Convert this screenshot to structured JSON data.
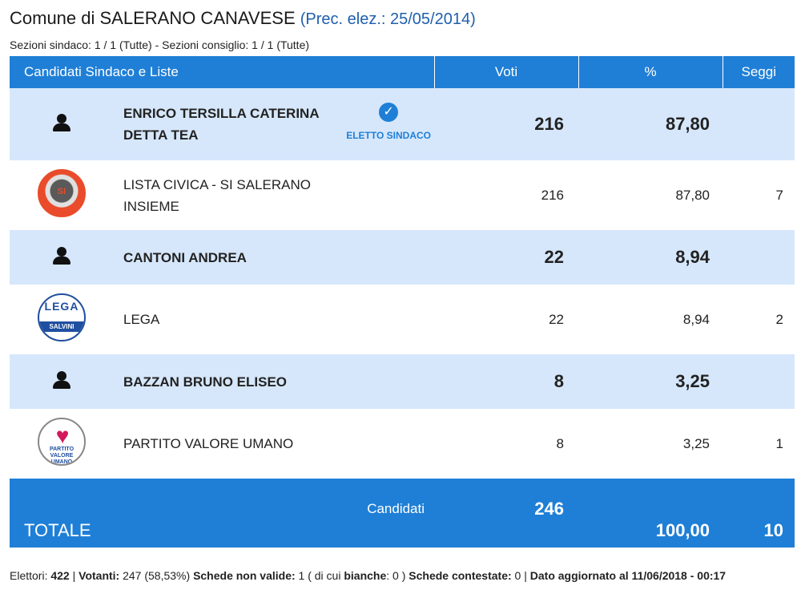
{
  "header": {
    "title": "Comune di SALERANO CANAVESE",
    "prec": "(Prec. elez.: 25/05/2014)",
    "subtitle": "Sezioni sindaco: 1 / 1 (Tutte) - Sezioni consiglio: 1 / 1 (Tutte)"
  },
  "table": {
    "columns": [
      "Candidati Sindaco e Liste",
      "Voti",
      "%",
      "Seggi"
    ],
    "rows": [
      {
        "kind": "candidate",
        "icon": "person-icon",
        "name_line1": "ENRICO TERSILLA CATERINA",
        "name_line2": "DETTA TEA",
        "badge": "ELETTO SINDACO",
        "voti": "216",
        "pct": "87,80",
        "seggi": ""
      },
      {
        "kind": "list",
        "icon": "lista-civica-logo",
        "logo_text": "SI",
        "name_line1": "LISTA CIVICA - SI SALERANO",
        "name_line2": "INSIEME",
        "voti": "216",
        "pct": "87,80",
        "seggi": "7"
      },
      {
        "kind": "candidate",
        "icon": "person-icon",
        "name_line1": "CANTONI ANDREA",
        "voti": "22",
        "pct": "8,94",
        "seggi": ""
      },
      {
        "kind": "list",
        "icon": "lega-logo",
        "logo_text": "LEGA",
        "logo_band": "SALVINI",
        "name_line1": "LEGA",
        "voti": "22",
        "pct": "8,94",
        "seggi": "2"
      },
      {
        "kind": "candidate",
        "icon": "person-icon",
        "name_line1": "BAZZAN BRUNO ELISEO",
        "voti": "8",
        "pct": "3,25",
        "seggi": ""
      },
      {
        "kind": "list",
        "icon": "partito-valore-umano-logo",
        "logo_text": "PARTITO VALORE UMANO",
        "name_line1": "PARTITO VALORE UMANO",
        "voti": "8",
        "pct": "3,25",
        "seggi": "1"
      }
    ],
    "total": {
      "label": "TOTALE",
      "candidates_label": "Candidati",
      "voti": "246",
      "pct": "100,00",
      "seggi": "10"
    }
  },
  "footer": {
    "elettori_label": "Elettori:",
    "elettori": "422",
    "votanti_label": "Votanti:",
    "votanti": "247 (58,53%)",
    "nonvalide_label": "Schede non valide:",
    "nonvalide": "1 ( di cui ",
    "bianche_label": "bianche",
    "bianche": ": 0 )",
    "contestate_label": "Schede contestate:",
    "contestate": "0",
    "aggiornato": "Dato aggiornato al 11/06/2018 - 00:17"
  },
  "colors": {
    "header_blue": "#1f7fd6",
    "candidate_row": "#d6e7fb",
    "title_blue": "#1f5fae"
  }
}
